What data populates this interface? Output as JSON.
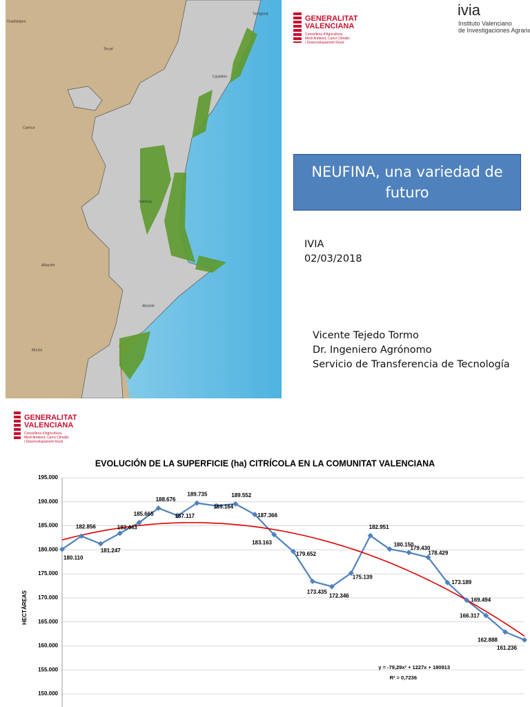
{
  "logos": {
    "gv_line1": "GENERALITAT",
    "gv_line2": "VALENCIANA",
    "gv_sub": [
      "Conselleria d'Agricultura,",
      "Medi Ambient, Canvi Climàtic",
      "i Desenvolupament Rural"
    ],
    "ivia": "ivia",
    "ivia_sub": [
      "Instituto Valenciano",
      "de Investigaciones Agrarias"
    ]
  },
  "map_labels": [
    "Guadalajara",
    "Teruel",
    "Tarragona",
    "Castellón",
    "Cuenca",
    "Valencia",
    "Albacete",
    "Alicante",
    "Murcia"
  ],
  "slide": {
    "title": "NEUFINA, una variedad de futuro",
    "org": "IVIA",
    "date": "02/03/2018",
    "author": [
      "Vicente Tejedo Tormo",
      "Dr. Ingeniero Agrónomo",
      "Servicio de Transferencia de Tecnología"
    ]
  },
  "chart_data": {
    "type": "line",
    "title": "EVOLUCIÓN DE LA SUPERFICIE (ha) CITRÍCOLA  EN LA COMUNITAT VALENCIANA",
    "y_label": "HECTÁREAS",
    "categories": [
      null,
      null,
      null,
      null,
      null,
      null,
      null,
      null,
      null,
      null,
      null,
      null,
      null,
      null,
      null,
      null,
      null,
      null,
      null,
      null,
      null,
      null,
      null,
      null,
      null
    ],
    "series": [
      {
        "color": "#4f81bd",
        "values": [
          180110,
          182856,
          181247,
          183443,
          185665,
          188676,
          187117,
          189735,
          189164,
          189552,
          187366,
          183163,
          179652,
          173435,
          172346,
          175139,
          182951,
          180150,
          179430,
          178429,
          173189,
          169494,
          166317,
          162888,
          161236
        ],
        "value_labels": [
          "180.110",
          "182.856",
          "181.247",
          "183.443",
          "185.665",
          "188.676",
          "187.117",
          "189.735",
          "189.164",
          "189.552",
          "187.366",
          "183.163",
          "179.652",
          "173.435",
          "172.346",
          "175.139",
          "182.951",
          "180.150",
          "179.430",
          "178.429",
          "173.189",
          "169.494",
          "166.317",
          "162.888",
          "161.236"
        ]
      }
    ],
    "trendline": {
      "color": "#e00000",
      "a": -79.29,
      "b": 1227,
      "c": 180913,
      "equation": "y = -79,29x² + 1227x + 180913",
      "r2": "R² = 0,7236"
    },
    "ylim": [
      150000,
      195000
    ],
    "yticks": [
      {
        "value": 150000,
        "label": "150.000"
      },
      {
        "value": 155000,
        "label": "155.000"
      },
      {
        "value": 160000,
        "label": "160.000"
      },
      {
        "value": 165000,
        "label": "165.000"
      },
      {
        "value": 170000,
        "label": "170.000"
      },
      {
        "value": 175000,
        "label": "175.000"
      },
      {
        "value": 180000,
        "label": "180.000"
      },
      {
        "value": 185000,
        "label": "185.000"
      },
      {
        "value": 190000,
        "label": "190.000"
      },
      {
        "value": 195000,
        "label": "195.000"
      }
    ],
    "grid": true
  }
}
